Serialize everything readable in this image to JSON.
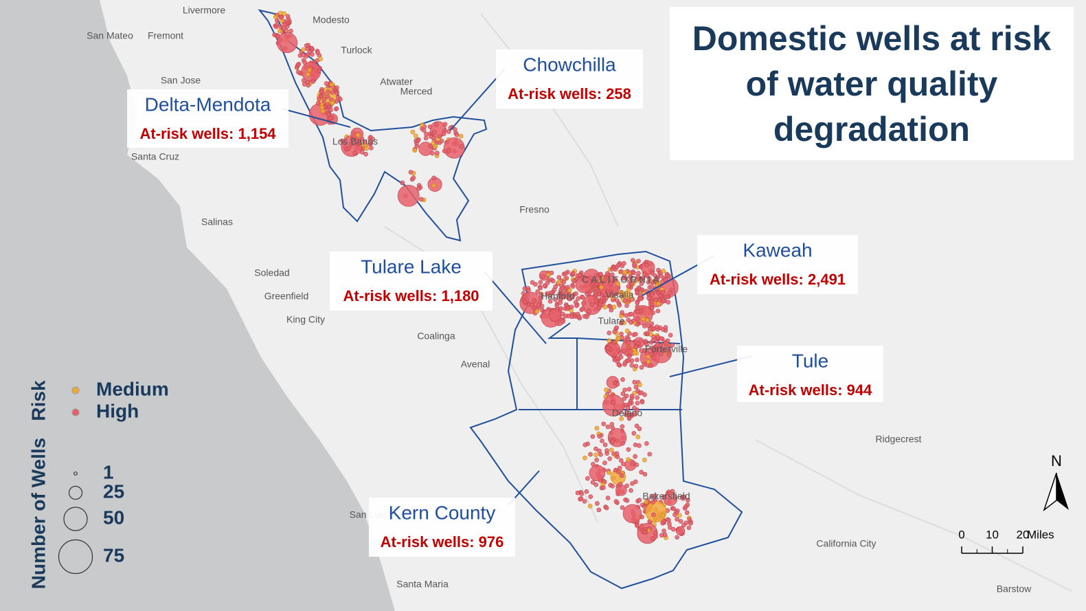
{
  "title": "Domestic wells at risk of water quality degradation",
  "regions": [
    {
      "name": "Delta-Mendota",
      "label": "At-risk wells: 1,154"
    },
    {
      "name": "Chowchilla",
      "label": "At-risk wells: 258"
    },
    {
      "name": "Tulare Lake",
      "label": "At-risk wells: 1,180"
    },
    {
      "name": "Kaweah",
      "label": "At-risk wells: 2,491"
    },
    {
      "name": "Tule",
      "label": "At-risk wells: 944"
    },
    {
      "name": "Kern County",
      "label": "At-risk wells: 976"
    }
  ],
  "places": [
    "Livermore",
    "Modesto",
    "San Mateo",
    "Fremont",
    "Turlock",
    "San Jose",
    "Atwater",
    "Merced",
    "Los Banos",
    "Santa Cruz",
    "Fresno",
    "Salinas",
    "Soledad",
    "Greenfield",
    "King City",
    "Coalinga",
    "Avenal",
    "Hanford",
    "Visalia",
    "Tulare",
    "Porterville",
    "Delano",
    "Ridgecrest",
    "Bakersfield",
    "San Luis Obispo",
    "California City",
    "Santa Maria",
    "Barstow",
    "CALIFORNIA"
  ],
  "legend": {
    "risk_title": "Risk",
    "risk": [
      {
        "label": "Medium",
        "color": "#f2a93b"
      },
      {
        "label": "High",
        "color": "#e8606a"
      }
    ],
    "size_title": "Number of Wells",
    "sizes": [
      1,
      25,
      50,
      75
    ]
  },
  "scale": {
    "ticks": [
      0,
      10,
      20
    ],
    "unit": "Miles"
  },
  "north": "N"
}
